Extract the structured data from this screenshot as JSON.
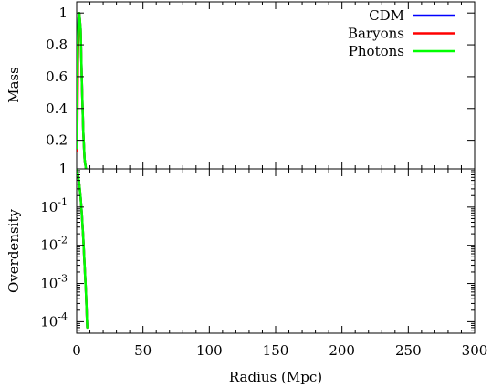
{
  "chart_data": {
    "type": "line",
    "x_axis": {
      "label": "Radius (Mpc)",
      "range": [
        0,
        300
      ],
      "ticks": [
        0,
        50,
        100,
        150,
        200,
        250,
        300
      ],
      "tick_labels": [
        "0",
        "50",
        "100",
        "150",
        "200",
        "250",
        "300"
      ]
    },
    "legend": {
      "placement": "top-right",
      "entries": [
        {
          "name": "CDM",
          "color": "#0000ff"
        },
        {
          "name": "Baryons",
          "color": "#ff0000"
        },
        {
          "name": "Photons",
          "color": "#00ff00"
        }
      ]
    },
    "panels": [
      {
        "id": "mass",
        "ylabel": "Mass",
        "yscale": "linear",
        "ylim": [
          0.02,
          1.07
        ],
        "yticks": [
          0.2,
          0.4,
          0.6,
          0.8,
          1
        ],
        "ytick_labels": [
          "0.2",
          "0.4",
          "0.6",
          "0.8",
          "1"
        ],
        "series": [
          {
            "name": "CDM",
            "color": "#0000ff",
            "x": [
              0,
              0.5,
              1,
              1.5,
              2,
              3,
              4,
              5,
              6,
              7
            ],
            "y": [
              0.15,
              0.55,
              0.85,
              0.97,
              1.0,
              0.9,
              0.55,
              0.25,
              0.08,
              0.02
            ]
          },
          {
            "name": "Baryons",
            "color": "#ff0000",
            "x": [
              0,
              0.3,
              0.6,
              1,
              1.5,
              2,
              3,
              4,
              5,
              6,
              7
            ],
            "y": [
              0.13,
              0.14,
              0.35,
              0.7,
              0.93,
              1.0,
              0.9,
              0.55,
              0.25,
              0.08,
              0.02
            ]
          },
          {
            "name": "Photons",
            "color": "#00ff00",
            "x": [
              0,
              0.5,
              1,
              1.5,
              2,
              3,
              4,
              5,
              6,
              7
            ],
            "y": [
              0.15,
              0.55,
              0.85,
              0.97,
              1.0,
              0.9,
              0.55,
              0.25,
              0.08,
              0.02
            ]
          }
        ]
      },
      {
        "id": "overdensity",
        "ylabel": "Overdensity",
        "yscale": "log",
        "ylim": [
          5e-05,
          1
        ],
        "yticks": [
          1,
          0.1,
          0.01,
          0.001,
          0.0001
        ],
        "ytick_labels": [
          {
            "base": "1",
            "exp": ""
          },
          {
            "base": "10",
            "exp": "-1"
          },
          {
            "base": "10",
            "exp": "-2"
          },
          {
            "base": "10",
            "exp": "-3"
          },
          {
            "base": "10",
            "exp": "-4"
          }
        ],
        "series": [
          {
            "name": "CDM",
            "color": "#0000ff",
            "x": [
              0,
              1,
              2,
              3,
              4,
              5,
              6,
              7,
              8
            ],
            "y": [
              1,
              0.7,
              0.4,
              0.18,
              0.06,
              0.015,
              0.003,
              0.0006,
              7e-05
            ]
          },
          {
            "name": "Baryons",
            "color": "#ff0000",
            "x": [
              0,
              1,
              2,
              3,
              4,
              5,
              6,
              7,
              8
            ],
            "y": [
              1,
              0.7,
              0.4,
              0.18,
              0.06,
              0.015,
              0.003,
              0.0006,
              7e-05
            ]
          },
          {
            "name": "Photons",
            "color": "#00ff00",
            "x": [
              0,
              1,
              2,
              3,
              4,
              5,
              6,
              7,
              8
            ],
            "y": [
              1,
              0.7,
              0.4,
              0.18,
              0.06,
              0.015,
              0.003,
              0.0006,
              7e-05
            ]
          }
        ]
      }
    ]
  }
}
